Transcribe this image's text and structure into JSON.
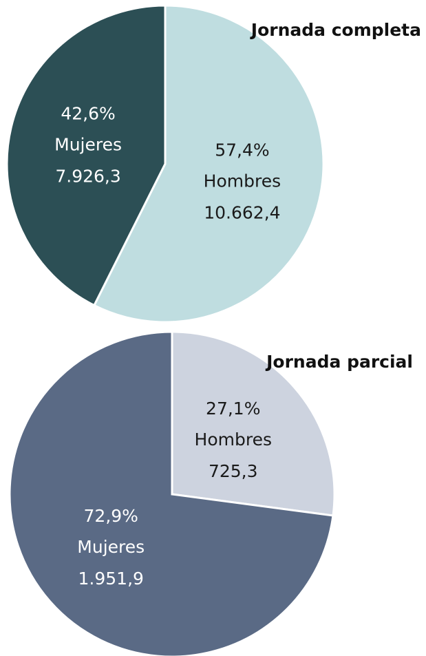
{
  "chart_data": [
    {
      "type": "pie",
      "title": "Jornada completa",
      "categories": [
        "Hombres",
        "Mujeres"
      ],
      "values": [
        57.4,
        42.6
      ],
      "value_labels": [
        "57,4%",
        "42,6%"
      ],
      "counts": [
        10662.4,
        7926.3
      ],
      "count_labels": [
        "10.662,4",
        "7.926,3"
      ],
      "colors": [
        "#bfdde0",
        "#2c4f55"
      ],
      "label_colors": [
        "#1a1a1a",
        "#ffffff"
      ]
    },
    {
      "type": "pie",
      "title": "Jornada parcial",
      "categories": [
        "Hombres",
        "Mujeres"
      ],
      "values": [
        27.1,
        72.9
      ],
      "value_labels": [
        "27,1%",
        "72,9%"
      ],
      "counts": [
        725.3,
        1951.9
      ],
      "count_labels": [
        "725,3",
        "1.951,9"
      ],
      "colors": [
        "#cdd3df",
        "#5a6a85"
      ],
      "label_colors": [
        "#1a1a1a",
        "#ffffff"
      ]
    }
  ]
}
